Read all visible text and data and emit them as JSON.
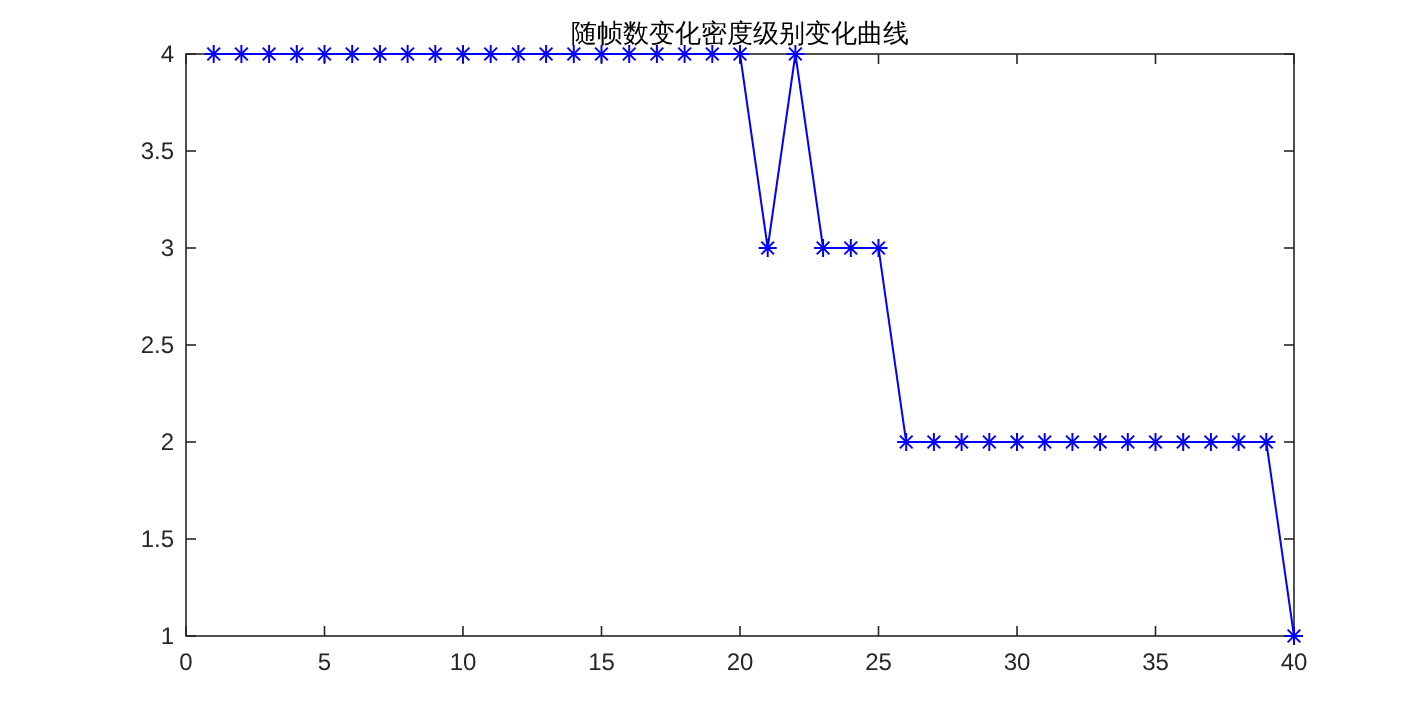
{
  "chart_data": {
    "type": "line",
    "title": "随帧数变化密度级别变化曲线",
    "x": [
      1,
      2,
      3,
      4,
      5,
      6,
      7,
      8,
      9,
      10,
      11,
      12,
      13,
      14,
      15,
      16,
      17,
      18,
      19,
      20,
      21,
      22,
      23,
      24,
      25,
      26,
      27,
      28,
      29,
      30,
      31,
      32,
      33,
      34,
      35,
      36,
      37,
      38,
      39,
      40
    ],
    "series": [
      {
        "color": "#0000ff",
        "values": [
          4,
          4,
          4,
          4,
          4,
          4,
          4,
          4,
          4,
          4,
          4,
          4,
          4,
          4,
          4,
          4,
          4,
          4,
          4,
          4,
          3,
          4,
          3,
          3,
          3,
          2,
          2,
          2,
          2,
          2,
          2,
          2,
          2,
          2,
          2,
          2,
          2,
          2,
          2,
          1
        ]
      }
    ],
    "xlim": [
      0,
      40
    ],
    "xticks": [
      0,
      5,
      10,
      15,
      20,
      25,
      30,
      35,
      40
    ],
    "ylim": [
      1,
      4
    ],
    "yticks": [
      1,
      1.5,
      2,
      2.5,
      3,
      3.5,
      4
    ],
    "marker": "cross",
    "line_style": "solid",
    "grid": false
  }
}
